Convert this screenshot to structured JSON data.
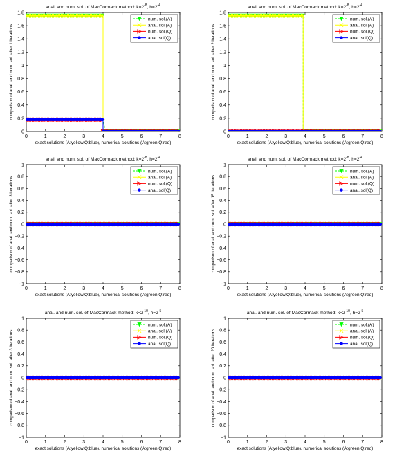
{
  "chart_data": [
    {
      "type": "line",
      "title": "anal. and num. sol. of MacCormack method: k=2^-8, h=2^-4",
      "title_main": "anal. and num. sol. of MacCormack method: k=2",
      "k_exp": "-8",
      "h_mid": ", h=2",
      "h_exp": "-4",
      "xlabel": "exact solutions (A:yellow,Q:blue), numerical solutions (A:green,Q:red)",
      "ylabel": "comparison of anal. and num. sol. after 1 iterations",
      "xlim": [
        0,
        8
      ],
      "ylim": [
        0,
        1.8
      ],
      "xticks": [
        "0",
        "1",
        "2",
        "3",
        "4",
        "5",
        "6",
        "7",
        "8"
      ],
      "yticks": [
        "0",
        "0.2",
        "0.4",
        "0.6",
        "0.8",
        "1",
        "1.2",
        "1.4",
        "1.6",
        "1.8"
      ],
      "legend_position": "top-right",
      "series": [
        {
          "name": "num. sol.(A)",
          "color": "#00ff00",
          "marker": "triangle-down",
          "line": "dashed",
          "x": [
            0,
            4.0,
            4.0,
            4.12,
            8
          ],
          "y": [
            1.75,
            1.75,
            0.18,
            0,
            0
          ]
        },
        {
          "name": "anal. sol.(A)",
          "color": "#ffff00",
          "marker": "x",
          "line": "solid",
          "x": [
            0,
            4.0,
            4.0,
            8
          ],
          "y": [
            1.75,
            1.75,
            0,
            0
          ]
        },
        {
          "name": "num. sol.(Q)",
          "color": "#ff0000",
          "marker": "triangle-right",
          "line": "solid",
          "x": [
            0,
            4.0,
            4.0,
            8
          ],
          "y": [
            0.18,
            0.18,
            0,
            0
          ]
        },
        {
          "name": "anal. sol(Q)",
          "color": "#0000ff",
          "marker": "circle",
          "line": "solid",
          "x": [
            0,
            4.0,
            4.0,
            8
          ],
          "y": [
            0.18,
            0.18,
            0,
            0
          ]
        }
      ]
    },
    {
      "type": "line",
      "title": "anal. and num. sol. of MacCormack method: k=2^-8, h=2^-4",
      "title_main": "anal. and num. sol. of MacCormack method: k=2",
      "k_exp": "-8",
      "h_mid": ", h=2",
      "h_exp": "-4",
      "xlabel": "exact solutions (A:yellow,Q:blue), numerical solutions (A:green,Q:red)",
      "ylabel": "comparison of anal. and num. sol. after 2 iterations",
      "xlim": [
        0,
        8
      ],
      "ylim": [
        0,
        1.8
      ],
      "xticks": [
        "0",
        "1",
        "2",
        "3",
        "4",
        "5",
        "6",
        "7",
        "8"
      ],
      "yticks": [
        "0",
        "0.2",
        "0.4",
        "0.6",
        "0.8",
        "1",
        "1.2",
        "1.4",
        "1.6",
        "1.8"
      ],
      "legend_position": "top-right",
      "series": [
        {
          "name": "num. sol.(A)",
          "color": "#00ff00",
          "marker": "triangle-down",
          "line": "dashed",
          "x": [
            0,
            3.9,
            3.9,
            8
          ],
          "y": [
            1.75,
            1.75,
            0,
            0
          ]
        },
        {
          "name": "anal. sol.(A)",
          "color": "#ffff00",
          "marker": "x",
          "line": "solid",
          "x": [
            0,
            3.9,
            3.9,
            8
          ],
          "y": [
            1.75,
            1.75,
            0,
            0
          ]
        },
        {
          "name": "num. sol.(Q)",
          "color": "#ff0000",
          "marker": "triangle-right",
          "line": "solid",
          "x": [
            0,
            8
          ],
          "y": [
            0,
            0
          ]
        },
        {
          "name": "anal. sol(Q)",
          "color": "#0000ff",
          "marker": "circle",
          "line": "solid",
          "x": [
            0,
            8
          ],
          "y": [
            0,
            0
          ]
        }
      ]
    },
    {
      "type": "line",
      "title": "anal. and num. sol. of MacCormack method: k=2^-8, h=2^-4",
      "title_main": "anal. and num. sol. of MacCormack method: k=2",
      "k_exp": "-8",
      "h_mid": ", h=2",
      "h_exp": "-4",
      "xlabel": "exact solutions (A:yellow,Q:blue), numerical solutions (A:green,Q:red)",
      "ylabel": "comparison of anal. and num. sol. after 3 iterations",
      "xlim": [
        0,
        8
      ],
      "ylim": [
        -1,
        1
      ],
      "xticks": [
        "0",
        "1",
        "2",
        "3",
        "4",
        "5",
        "6",
        "7",
        "8"
      ],
      "yticks": [
        "−1",
        "−0.8",
        "−0.6",
        "−0.4",
        "−0.2",
        "0",
        "0.2",
        "0.4",
        "0.6",
        "0.8",
        "1"
      ],
      "legend_position": "top-right",
      "series": [
        {
          "name": "num. sol.(A)",
          "color": "#00ff00",
          "marker": "triangle-down",
          "line": "dashed",
          "x": [
            0,
            8
          ],
          "y": [
            0,
            0
          ]
        },
        {
          "name": "anal. sol.(A)",
          "color": "#ffff00",
          "marker": "x",
          "line": "solid",
          "x": [
            0,
            8
          ],
          "y": [
            0,
            0
          ]
        },
        {
          "name": "num. sol.(Q)",
          "color": "#ff0000",
          "marker": "triangle-right",
          "line": "solid",
          "x": [
            0,
            8
          ],
          "y": [
            0,
            0
          ]
        },
        {
          "name": "anal. sol(Q)",
          "color": "#0000ff",
          "marker": "circle",
          "line": "solid",
          "x": [
            0,
            8
          ],
          "y": [
            0,
            0
          ]
        }
      ]
    },
    {
      "type": "line",
      "title": "anal. and num. sol. of MacCormack method: k=2^-8, h=2^-4",
      "title_main": "anal. and num. sol. of MacCormack method: k=2",
      "k_exp": "-8",
      "h_mid": ", h=2",
      "h_exp": "-4",
      "xlabel": "exact solutions (A:yellow,Q:blue), numerical solutions (A:green,Q:red)",
      "ylabel": "comparison of anal. and num. sol. after 15 iterations",
      "xlim": [
        0,
        8
      ],
      "ylim": [
        -1,
        1
      ],
      "xticks": [
        "0",
        "1",
        "2",
        "3",
        "4",
        "5",
        "6",
        "7",
        "8"
      ],
      "yticks": [
        "−1",
        "−0.8",
        "−0.6",
        "−0.4",
        "−0.2",
        "0",
        "0.2",
        "0.4",
        "0.6",
        "0.8",
        "1"
      ],
      "legend_position": "top-right",
      "series": [
        {
          "name": "num. sol.(A)",
          "color": "#00ff00",
          "marker": "triangle-down",
          "line": "dashed",
          "x": [
            0,
            8
          ],
          "y": [
            0,
            0
          ]
        },
        {
          "name": "anal. sol.(A)",
          "color": "#ffff00",
          "marker": "x",
          "line": "solid",
          "x": [
            0,
            8
          ],
          "y": [
            0,
            0
          ]
        },
        {
          "name": "num. sol.(Q)",
          "color": "#ff0000",
          "marker": "triangle-right",
          "line": "solid",
          "x": [
            0,
            8
          ],
          "y": [
            0,
            0
          ]
        },
        {
          "name": "anal. sol(Q)",
          "color": "#0000ff",
          "marker": "circle",
          "line": "solid",
          "x": [
            0,
            8
          ],
          "y": [
            0,
            0
          ]
        }
      ]
    },
    {
      "type": "line",
      "title": "anal. and num. sol. of MacCormack method: k=2^-10, h=2^-5",
      "title_main": "anal. and num. sol. of MacCormack method: k=2",
      "k_exp": "-10",
      "h_mid": ", h=2",
      "h_exp": "-5",
      "xlabel": "exact solutions (A:yellow,Q:blue), numerical solutions (A:green,Q:red)",
      "ylabel": "comparison of anal. and num. sol. after 3 iterations",
      "xlim": [
        0,
        8
      ],
      "ylim": [
        -1,
        1
      ],
      "xticks": [
        "0",
        "1",
        "2",
        "3",
        "4",
        "5",
        "6",
        "7",
        "8"
      ],
      "yticks": [
        "−1",
        "−0.8",
        "−0.6",
        "−0.4",
        "−0.2",
        "0",
        "0.2",
        "0.4",
        "0.6",
        "0.8",
        "1"
      ],
      "legend_position": "top-right",
      "series": [
        {
          "name": "num. sol.(A)",
          "color": "#00ff00",
          "marker": "triangle-down",
          "line": "dashed",
          "x": [
            0,
            8
          ],
          "y": [
            0,
            0
          ]
        },
        {
          "name": "anal. sol.(A)",
          "color": "#ffff00",
          "marker": "x",
          "line": "solid",
          "x": [
            0,
            8
          ],
          "y": [
            0,
            0
          ]
        },
        {
          "name": "num. sol.(Q)",
          "color": "#ff0000",
          "marker": "triangle-right",
          "line": "solid",
          "x": [
            0,
            8
          ],
          "y": [
            0,
            0
          ]
        },
        {
          "name": "anal. sol(Q)",
          "color": "#0000ff",
          "marker": "circle",
          "line": "solid",
          "x": [
            0,
            8
          ],
          "y": [
            0,
            0
          ]
        }
      ]
    },
    {
      "type": "line",
      "title": "anal. and num. sol. of MacCormack method: k=2^-10, h=2^-5",
      "title_main": "anal. and num. sol. of MacCormack method: k=2",
      "k_exp": "-10",
      "h_mid": ", h=2",
      "h_exp": "-5",
      "xlabel": "exact solutions (A:yellow,Q:blue), numerical solutions (A:green,Q:red)",
      "ylabel": "comparison of anal. and num. sol. after 20 iterations",
      "xlim": [
        0,
        8
      ],
      "ylim": [
        -1,
        1
      ],
      "xticks": [
        "0",
        "1",
        "2",
        "3",
        "4",
        "5",
        "6",
        "7",
        "8"
      ],
      "yticks": [
        "−1",
        "−0.8",
        "−0.6",
        "−0.4",
        "−0.2",
        "0",
        "0.2",
        "0.4",
        "0.6",
        "0.8",
        "1"
      ],
      "legend_position": "top-right",
      "series": [
        {
          "name": "num. sol.(A)",
          "color": "#00ff00",
          "marker": "triangle-down",
          "line": "dashed",
          "x": [
            0,
            8
          ],
          "y": [
            0,
            0
          ]
        },
        {
          "name": "anal. sol.(A)",
          "color": "#ffff00",
          "marker": "x",
          "line": "solid",
          "x": [
            0,
            8
          ],
          "y": [
            0,
            0
          ]
        },
        {
          "name": "num. sol.(Q)",
          "color": "#ff0000",
          "marker": "triangle-right",
          "line": "solid",
          "x": [
            0,
            8
          ],
          "y": [
            0,
            0
          ]
        },
        {
          "name": "anal. sol(Q)",
          "color": "#0000ff",
          "marker": "circle",
          "line": "solid",
          "x": [
            0,
            8
          ],
          "y": [
            0,
            0
          ]
        }
      ]
    }
  ]
}
